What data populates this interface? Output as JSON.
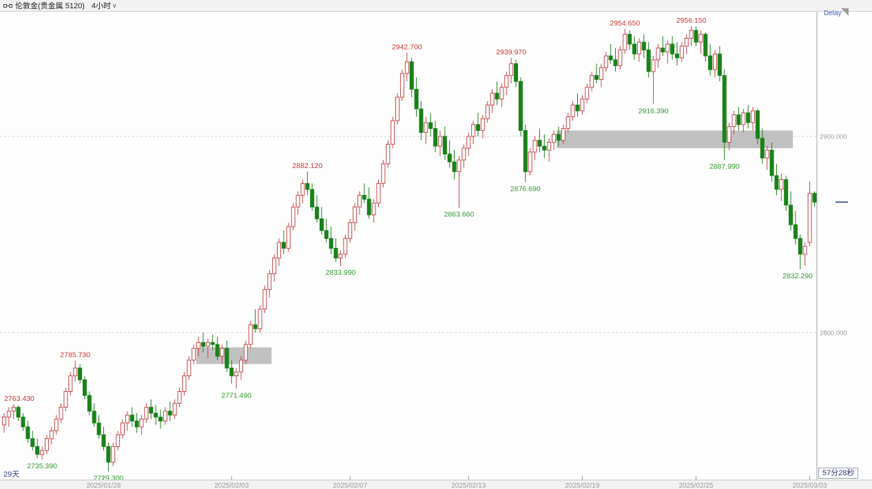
{
  "header": {
    "symbol": "伦敦金(贵金属 5120)",
    "timeframe": "4小时"
  },
  "icons": {
    "chevron_down": "∨",
    "instrument_icon": "candles-link-icon"
  },
  "delay_label": "Delay",
  "footer": {
    "left_label": "29天",
    "right_label": "57分28秒"
  },
  "colors": {
    "up": "#c54444",
    "down": "#188218",
    "label_up": "#cc3333",
    "label_down": "#339933",
    "zone": "#bcbcbc",
    "grid": "#cfcfcf",
    "axis_line": "#a0a0a0",
    "axis_text": "#999999",
    "current_price_tick": "#2c3e70",
    "background": "#fdfdfd"
  },
  "chart_data": {
    "type": "candlestick",
    "title": "伦敦金(贵金属 5120) 4小时",
    "y_axis_ticks": [
      {
        "label": "2900.000",
        "price": 2900
      },
      {
        "label": "2800.000",
        "price": 2800
      }
    ],
    "gridline_prices": [
      2900,
      2800
    ],
    "grid": "dashed-horizontal",
    "legend_position": "none",
    "current_price": 2866.5,
    "date_ticks": [
      {
        "label": "2025/01/28",
        "index": 21
      },
      {
        "label": "2025/02/03",
        "index": 48
      },
      {
        "label": "2025/02/07",
        "index": 73
      },
      {
        "label": "2025/02/13",
        "index": 98
      },
      {
        "label": "2025/02/19",
        "index": 122
      },
      {
        "label": "2025/02/25",
        "index": 146
      },
      {
        "label": "2025/03/03",
        "index": 170
      }
    ],
    "annotations": [
      {
        "index": 2,
        "value": "2763.430",
        "price": 2763.43,
        "side": "high"
      },
      {
        "index": 8,
        "value": "2735.390",
        "price": 2735.39,
        "side": "low"
      },
      {
        "index": 15,
        "value": "2785.730",
        "price": 2785.73,
        "side": "high"
      },
      {
        "index": 22,
        "value": "2729.300",
        "price": 2729.3,
        "side": "low"
      },
      {
        "index": 49,
        "value": "2771.490",
        "price": 2771.49,
        "side": "low"
      },
      {
        "index": 64,
        "value": "2882.120",
        "price": 2882.12,
        "side": "high"
      },
      {
        "index": 71,
        "value": "2833.990",
        "price": 2833.99,
        "side": "low"
      },
      {
        "index": 85,
        "value": "2942.700",
        "price": 2942.7,
        "side": "high"
      },
      {
        "index": 96,
        "value": "2863.660",
        "price": 2863.66,
        "side": "low"
      },
      {
        "index": 107,
        "value": "2939.970",
        "price": 2939.97,
        "side": "high"
      },
      {
        "index": 110,
        "value": "2876.690",
        "price": 2876.69,
        "side": "low"
      },
      {
        "index": 131,
        "value": "2954.650",
        "price": 2954.65,
        "side": "high"
      },
      {
        "index": 137,
        "value": "2916.390",
        "price": 2916.39,
        "side": "low"
      },
      {
        "index": 145,
        "value": "2956.150",
        "price": 2956.15,
        "side": "high"
      },
      {
        "index": 152,
        "value": "2887.990",
        "price": 2887.99,
        "side": "low"
      },
      {
        "index": 168,
        "value": "2832.290",
        "price": 2832.29,
        "side": "low"
      }
    ],
    "zones": [
      {
        "start_index": 41,
        "end_index": 56,
        "top_price": 2792.5,
        "bottom_price": 2784
      },
      {
        "start_index": 117,
        "end_index": 166,
        "top_price": 2903,
        "bottom_price": 2894
      }
    ],
    "ohlc": [
      [
        2753,
        2759,
        2749,
        2757
      ],
      [
        2757,
        2762,
        2752,
        2760
      ],
      [
        2760,
        2763.43,
        2756,
        2762
      ],
      [
        2762,
        2763,
        2755,
        2757
      ],
      [
        2757,
        2759,
        2750,
        2752
      ],
      [
        2752,
        2755,
        2744,
        2746
      ],
      [
        2746,
        2750,
        2740,
        2742
      ],
      [
        2742,
        2746,
        2736,
        2738
      ],
      [
        2738,
        2742,
        2735.39,
        2740
      ],
      [
        2740,
        2748,
        2738,
        2746
      ],
      [
        2746,
        2752,
        2743,
        2750
      ],
      [
        2750,
        2758,
        2748,
        2756
      ],
      [
        2756,
        2764,
        2754,
        2762
      ],
      [
        2762,
        2772,
        2760,
        2770
      ],
      [
        2770,
        2780,
        2768,
        2778
      ],
      [
        2778,
        2785.73,
        2775,
        2782
      ],
      [
        2782,
        2784,
        2774,
        2776
      ],
      [
        2776,
        2778,
        2766,
        2768
      ],
      [
        2768,
        2770,
        2758,
        2760
      ],
      [
        2760,
        2764,
        2752,
        2754
      ],
      [
        2754,
        2758,
        2746,
        2748
      ],
      [
        2748,
        2752,
        2740,
        2742
      ],
      [
        2742,
        2744,
        2729.3,
        2734
      ],
      [
        2734,
        2744,
        2732,
        2742
      ],
      [
        2742,
        2750,
        2740,
        2748
      ],
      [
        2748,
        2756,
        2746,
        2754
      ],
      [
        2754,
        2760,
        2750,
        2758
      ],
      [
        2758,
        2762,
        2752,
        2755
      ],
      [
        2755,
        2759,
        2749,
        2752
      ],
      [
        2752,
        2758,
        2748,
        2756
      ],
      [
        2756,
        2764,
        2754,
        2762
      ],
      [
        2762,
        2766,
        2756,
        2759
      ],
      [
        2759,
        2763,
        2753,
        2757
      ],
      [
        2757,
        2761,
        2751,
        2755
      ],
      [
        2755,
        2762,
        2753,
        2760
      ],
      [
        2760,
        2765,
        2755,
        2758
      ],
      [
        2758,
        2766,
        2756,
        2764
      ],
      [
        2764,
        2772,
        2762,
        2770
      ],
      [
        2770,
        2780,
        2768,
        2778
      ],
      [
        2778,
        2788,
        2776,
        2786
      ],
      [
        2786,
        2794,
        2784,
        2792
      ],
      [
        2792,
        2798,
        2788,
        2795
      ],
      [
        2795,
        2800,
        2790,
        2793
      ],
      [
        2793,
        2797,
        2787,
        2795
      ],
      [
        2795,
        2799,
        2791,
        2794
      ],
      [
        2794,
        2798,
        2786,
        2788
      ],
      [
        2788,
        2794,
        2784,
        2792
      ],
      [
        2792,
        2796,
        2780,
        2782
      ],
      [
        2782,
        2786,
        2774,
        2778
      ],
      [
        2778,
        2782,
        2771.49,
        2780
      ],
      [
        2780,
        2788,
        2776,
        2786
      ],
      [
        2786,
        2796,
        2784,
        2794
      ],
      [
        2794,
        2806,
        2792,
        2804
      ],
      [
        2804,
        2812,
        2800,
        2802
      ],
      [
        2802,
        2814,
        2800,
        2812
      ],
      [
        2812,
        2824,
        2810,
        2822
      ],
      [
        2822,
        2832,
        2818,
        2830
      ],
      [
        2830,
        2840,
        2826,
        2838
      ],
      [
        2838,
        2848,
        2834,
        2846
      ],
      [
        2846,
        2852,
        2840,
        2843
      ],
      [
        2843,
        2856,
        2841,
        2854
      ],
      [
        2854,
        2866,
        2852,
        2864
      ],
      [
        2864,
        2872,
        2860,
        2870
      ],
      [
        2870,
        2878,
        2866,
        2876
      ],
      [
        2876,
        2882.12,
        2870,
        2873
      ],
      [
        2873,
        2876,
        2862,
        2864
      ],
      [
        2864,
        2870,
        2856,
        2858
      ],
      [
        2858,
        2864,
        2850,
        2852
      ],
      [
        2852,
        2858,
        2846,
        2848
      ],
      [
        2848,
        2854,
        2840,
        2843
      ],
      [
        2843,
        2848,
        2836,
        2838
      ],
      [
        2838,
        2842,
        2833.99,
        2840
      ],
      [
        2840,
        2850,
        2838,
        2848
      ],
      [
        2848,
        2858,
        2846,
        2856
      ],
      [
        2856,
        2866,
        2852,
        2864
      ],
      [
        2864,
        2872,
        2860,
        2870
      ],
      [
        2870,
        2876,
        2866,
        2868
      ],
      [
        2868,
        2874,
        2858,
        2860
      ],
      [
        2860,
        2868,
        2856,
        2866
      ],
      [
        2866,
        2878,
        2864,
        2876
      ],
      [
        2876,
        2888,
        2874,
        2886
      ],
      [
        2886,
        2898,
        2884,
        2896
      ],
      [
        2896,
        2910,
        2894,
        2908
      ],
      [
        2908,
        2922,
        2906,
        2920
      ],
      [
        2920,
        2934,
        2918,
        2932
      ],
      [
        2932,
        2942.7,
        2928,
        2938
      ],
      [
        2938,
        2940,
        2920,
        2924
      ],
      [
        2924,
        2930,
        2910,
        2914
      ],
      [
        2914,
        2918,
        2898,
        2902
      ],
      [
        2902,
        2910,
        2896,
        2907
      ],
      [
        2907,
        2912,
        2900,
        2904
      ],
      [
        2904,
        2908,
        2892,
        2895
      ],
      [
        2895,
        2903,
        2890,
        2900
      ],
      [
        2900,
        2905,
        2888,
        2891
      ],
      [
        2891,
        2898,
        2884,
        2887
      ],
      [
        2887,
        2893,
        2878,
        2882
      ],
      [
        2882,
        2890,
        2863.66,
        2888
      ],
      [
        2888,
        2896,
        2884,
        2894
      ],
      [
        2894,
        2902,
        2890,
        2900
      ],
      [
        2900,
        2908,
        2896,
        2906
      ],
      [
        2906,
        2912,
        2900,
        2903
      ],
      [
        2903,
        2911,
        2899,
        2909
      ],
      [
        2909,
        2918,
        2907,
        2916
      ],
      [
        2916,
        2924,
        2912,
        2922
      ],
      [
        2922,
        2928,
        2916,
        2919
      ],
      [
        2919,
        2927,
        2915,
        2925
      ],
      [
        2925,
        2933,
        2921,
        2931
      ],
      [
        2931,
        2939.97,
        2927,
        2937
      ],
      [
        2937,
        2939,
        2925,
        2928
      ],
      [
        2928,
        2930,
        2900,
        2903
      ],
      [
        2903,
        2906,
        2876.69,
        2882
      ],
      [
        2882,
        2894,
        2880,
        2892
      ],
      [
        2892,
        2900,
        2888,
        2898
      ],
      [
        2898,
        2904,
        2892,
        2895
      ],
      [
        2895,
        2901,
        2889,
        2893
      ],
      [
        2893,
        2899,
        2887,
        2897
      ],
      [
        2897,
        2903,
        2893,
        2901
      ],
      [
        2901,
        2905,
        2895,
        2898
      ],
      [
        2898,
        2906,
        2896,
        2904
      ],
      [
        2904,
        2912,
        2902,
        2910
      ],
      [
        2910,
        2918,
        2908,
        2916
      ],
      [
        2916,
        2922,
        2910,
        2913
      ],
      [
        2913,
        2921,
        2911,
        2919
      ],
      [
        2919,
        2927,
        2917,
        2925
      ],
      [
        2925,
        2933,
        2923,
        2931
      ],
      [
        2931,
        2937,
        2927,
        2929
      ],
      [
        2929,
        2937,
        2925,
        2935
      ],
      [
        2935,
        2943,
        2933,
        2941
      ],
      [
        2941,
        2947,
        2937,
        2939
      ],
      [
        2939,
        2945,
        2933,
        2936
      ],
      [
        2936,
        2946,
        2934,
        2944
      ],
      [
        2944,
        2954.65,
        2942,
        2952
      ],
      [
        2952,
        2954,
        2944,
        2947
      ],
      [
        2947,
        2951,
        2939,
        2942
      ],
      [
        2942,
        2950,
        2938,
        2948
      ],
      [
        2948,
        2952,
        2940,
        2944
      ],
      [
        2944,
        2948,
        2930,
        2933
      ],
      [
        2933,
        2941,
        2916.39,
        2939
      ],
      [
        2939,
        2947,
        2935,
        2945
      ],
      [
        2945,
        2951,
        2941,
        2943
      ],
      [
        2943,
        2949,
        2937,
        2947
      ],
      [
        2947,
        2951,
        2939,
        2942
      ],
      [
        2942,
        2948,
        2936,
        2940
      ],
      [
        2940,
        2948,
        2938,
        2946
      ],
      [
        2946,
        2952,
        2942,
        2950
      ],
      [
        2950,
        2956.15,
        2946,
        2954
      ],
      [
        2954,
        2956,
        2946,
        2948
      ],
      [
        2948,
        2954,
        2942,
        2952
      ],
      [
        2952,
        2953,
        2938,
        2941
      ],
      [
        2941,
        2947,
        2931,
        2934
      ],
      [
        2934,
        2944,
        2930,
        2942
      ],
      [
        2942,
        2946,
        2928,
        2931
      ],
      [
        2931,
        2934,
        2887.99,
        2897
      ],
      [
        2897,
        2907,
        2893,
        2905
      ],
      [
        2905,
        2913,
        2901,
        2911
      ],
      [
        2911,
        2915,
        2903,
        2906
      ],
      [
        2906,
        2914,
        2902,
        2912
      ],
      [
        2912,
        2916,
        2904,
        2907
      ],
      [
        2907,
        2915,
        2903,
        2913
      ],
      [
        2913,
        2914,
        2896,
        2899
      ],
      [
        2899,
        2904,
        2886,
        2889
      ],
      [
        2889,
        2895,
        2883,
        2893
      ],
      [
        2893,
        2897,
        2877,
        2880
      ],
      [
        2880,
        2886,
        2870,
        2873
      ],
      [
        2873,
        2881,
        2867,
        2878
      ],
      [
        2878,
        2880,
        2862,
        2865
      ],
      [
        2865,
        2872,
        2852,
        2855
      ],
      [
        2855,
        2862,
        2845,
        2848
      ],
      [
        2848,
        2850,
        2832.29,
        2840
      ],
      [
        2840,
        2846,
        2834,
        2844
      ],
      [
        2846,
        2877,
        2844,
        2871
      ],
      [
        2871,
        2872,
        2864,
        2866.5
      ]
    ]
  }
}
